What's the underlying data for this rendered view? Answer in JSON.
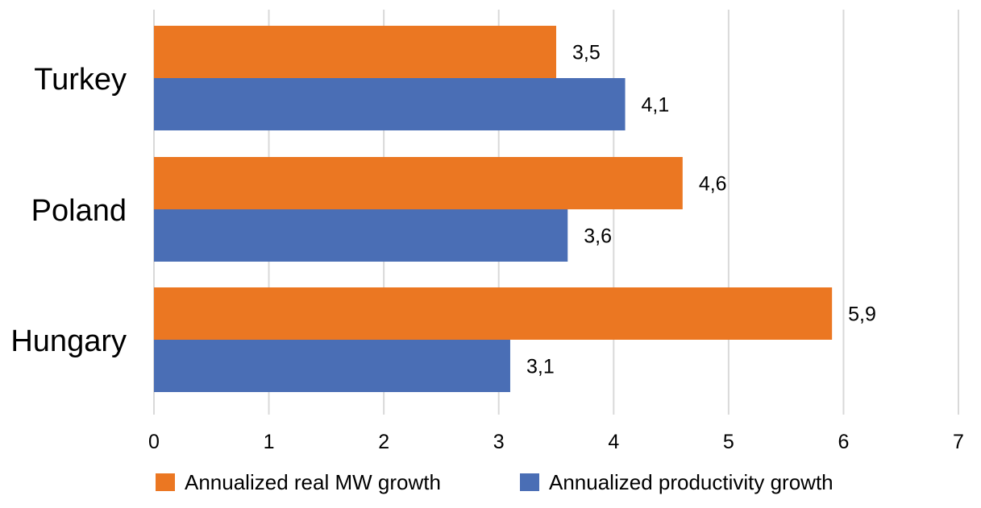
{
  "chart_data": {
    "type": "bar",
    "orientation": "horizontal",
    "categories": [
      "Turkey",
      "Poland",
      "Hungary"
    ],
    "series": [
      {
        "name": "Annualized real MW growth",
        "color": "#EB7722",
        "values": [
          3.5,
          4.6,
          5.9
        ],
        "labels": [
          "3,5",
          "4,6",
          "5,9"
        ]
      },
      {
        "name": "Annualized productivity growth",
        "color": "#4A6EB5",
        "values": [
          4.1,
          3.6,
          3.1
        ],
        "labels": [
          "4,1",
          "3,6",
          "3,1"
        ]
      }
    ],
    "xlim": [
      0,
      7
    ],
    "xticks": [
      "0",
      "1",
      "2",
      "3",
      "4",
      "5",
      "6",
      "7"
    ],
    "grid": true,
    "legend_position": "bottom"
  }
}
